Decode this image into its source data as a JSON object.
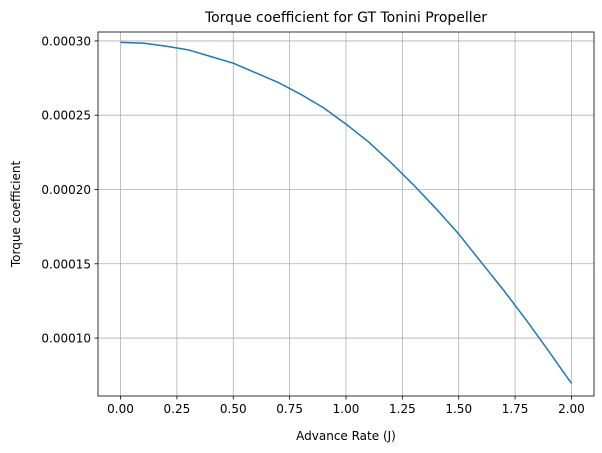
{
  "chart_data": {
    "type": "line",
    "title": "Torque coefficient for GT Tonini Propeller",
    "xlabel": "Advance Rate (J)",
    "ylabel": "Torque coefficient",
    "xlim": [
      -0.1,
      2.1
    ],
    "ylim": [
      6.1e-05,
      0.000306
    ],
    "grid": true,
    "x_ticks": [
      0.0,
      0.25,
      0.5,
      0.75,
      1.0,
      1.25,
      1.5,
      1.75,
      2.0
    ],
    "x_tick_labels": [
      "0.00",
      "0.25",
      "0.50",
      "0.75",
      "1.00",
      "1.25",
      "1.50",
      "1.75",
      "2.00"
    ],
    "y_ticks": [
      0.0001,
      0.00015,
      0.0002,
      0.00025,
      0.0003
    ],
    "y_tick_labels": [
      "0.00010",
      "0.00015",
      "0.00020",
      "0.00025",
      "0.00030"
    ],
    "series": [
      {
        "color": "#1f77b4",
        "x": [
          0.0,
          0.1,
          0.2,
          0.3,
          0.4,
          0.5,
          0.6,
          0.7,
          0.8,
          0.9,
          1.0,
          1.1,
          1.2,
          1.3,
          1.4,
          1.5,
          1.6,
          1.7,
          1.8,
          1.9,
          2.0
        ],
        "y": [
          0.000299,
          0.0002985,
          0.0002965,
          0.000294,
          0.0002895,
          0.000285,
          0.0002785,
          0.000272,
          0.000264,
          0.000255,
          0.000244,
          0.000232,
          0.000218,
          0.000203,
          0.000187,
          0.00017,
          0.000151,
          0.000132,
          0.000112,
          9.1e-05,
          6.95e-05
        ]
      }
    ]
  }
}
